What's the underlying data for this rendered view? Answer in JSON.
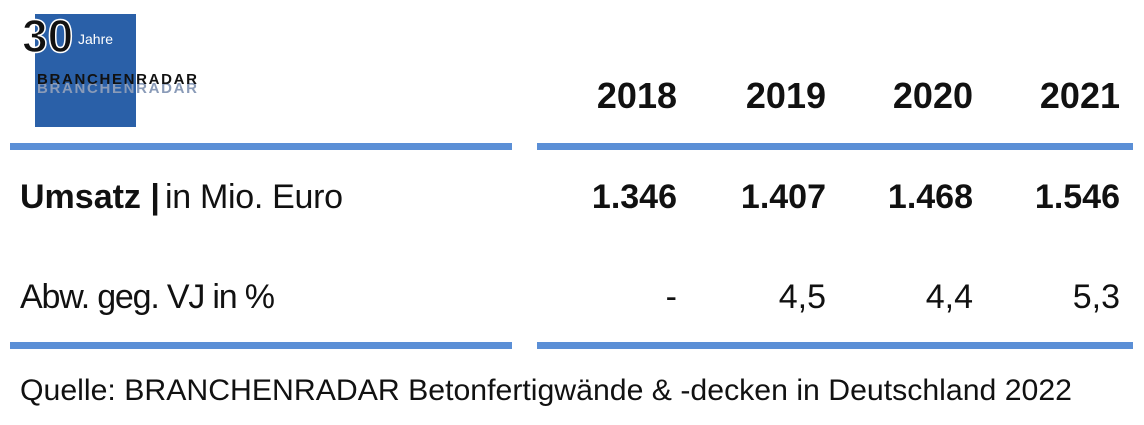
{
  "logo": {
    "number": "30",
    "suffix": "Jahre",
    "brand": "BRANCHENRADAR"
  },
  "table": {
    "header": [
      "2018",
      "2019",
      "2020",
      "2021"
    ],
    "rows": [
      {
        "label_bold": "Umsatz |",
        "label_rest": "in Mio. Euro",
        "cells": [
          "1.346",
          "1.407",
          "1.468",
          "1.546"
        ]
      },
      {
        "label": "Abw. geg. VJ in %",
        "cells": [
          "-",
          "4,5",
          "4,4",
          "5,3"
        ]
      }
    ]
  },
  "source": "Quelle: BRANCHENRADAR Betonfertigwände & -decken in Deutschland 2022"
}
